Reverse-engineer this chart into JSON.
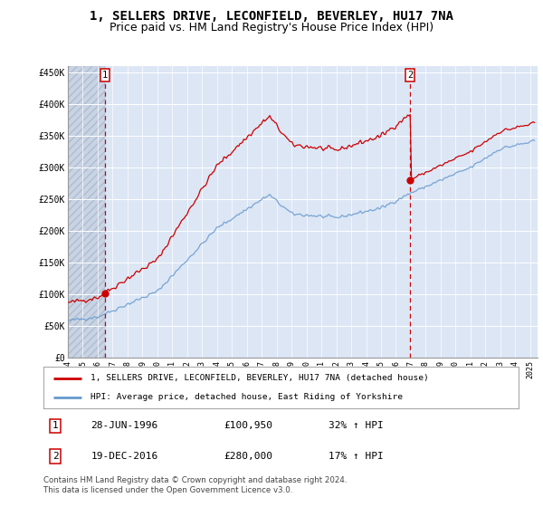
{
  "title": "1, SELLERS DRIVE, LECONFIELD, BEVERLEY, HU17 7NA",
  "subtitle": "Price paid vs. HM Land Registry's House Price Index (HPI)",
  "ylabel_ticks": [
    "£0",
    "£50K",
    "£100K",
    "£150K",
    "£200K",
    "£250K",
    "£300K",
    "£350K",
    "£400K",
    "£450K"
  ],
  "ylabel_values": [
    0,
    50000,
    100000,
    150000,
    200000,
    250000,
    300000,
    350000,
    400000,
    450000
  ],
  "ylim": [
    0,
    460000
  ],
  "xlim_start": 1994.0,
  "xlim_end": 2025.5,
  "t1_x": 1996.49,
  "t1_price": 100950,
  "t2_x": 2016.96,
  "t2_price": 280000,
  "legend_line1": "1, SELLERS DRIVE, LECONFIELD, BEVERLEY, HU17 7NA (detached house)",
  "legend_line2": "HPI: Average price, detached house, East Riding of Yorkshire",
  "ann1_label": "1",
  "ann1_date": "28-JUN-1996",
  "ann1_price": "£100,950",
  "ann1_hpi": "32% ↑ HPI",
  "ann2_label": "2",
  "ann2_date": "19-DEC-2016",
  "ann2_price": "£280,000",
  "ann2_hpi": "17% ↑ HPI",
  "footer": "Contains HM Land Registry data © Crown copyright and database right 2024.\nThis data is licensed under the Open Government Licence v3.0.",
  "plot_bg": "#dce6f5",
  "hatch_bg": "#c8d4e4",
  "grid_color": "#ffffff",
  "red_color": "#cc0000",
  "blue_color": "#6699cc",
  "title_fontsize": 10,
  "subtitle_fontsize": 9
}
